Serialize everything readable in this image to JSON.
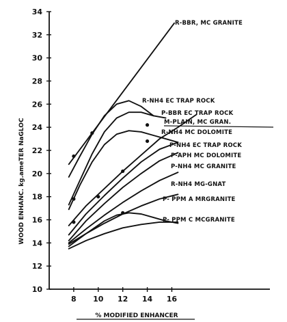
{
  "chart_data": {
    "type": "line",
    "title": "",
    "xlabel": "% MODIFIED ENHANCER",
    "ylabel": "WOOD ENHANC. kg.ameTER NaGLOC",
    "xlim": [
      6,
      24
    ],
    "ylim": [
      10,
      34
    ],
    "x_ticks": [
      "8",
      "10",
      "12",
      "14",
      "16"
    ],
    "x_tick_values": [
      8,
      10,
      12,
      14,
      16
    ],
    "y_ticks": [
      "10",
      "12",
      "14",
      "16",
      "18",
      "20",
      "22",
      "24",
      "26",
      "28",
      "30",
      "32",
      "34"
    ],
    "y_tick_values": [
      10,
      12,
      14,
      16,
      18,
      20,
      22,
      24,
      26,
      28,
      30,
      32,
      34
    ],
    "series": [
      {
        "name": "R-BBR, MC GRANITE",
        "x": [
          7.6,
          16.2
        ],
        "y": [
          20.8,
          33.0
        ]
      },
      {
        "name": "R-NH4 EC TRAP ROCK",
        "x": [
          7.6,
          8.5,
          9.5,
          10.5,
          11.5,
          12.5,
          13.5,
          14.5
        ],
        "y": [
          19.7,
          21.5,
          23.4,
          25.0,
          26.0,
          26.3,
          25.8,
          25.0
        ]
      },
      {
        "name": "P-BBR EC TRAP ROCK",
        "x": [
          7.6,
          8.5,
          9.5,
          10.5,
          11.5,
          12.5,
          13.5,
          14.5,
          15.5
        ],
        "y": [
          17.3,
          19.4,
          21.7,
          23.6,
          24.8,
          25.3,
          25.3,
          25.0,
          24.8
        ]
      },
      {
        "name": "M-PLAIN, MC GRANITE",
        "x": [
          7.6,
          9,
          10.5,
          12,
          13.5,
          15,
          16.5,
          18
        ],
        "y": [
          15.5,
          17.2,
          18.7,
          20.2,
          21.6,
          23.0,
          24.0,
          25.1
        ]
      },
      {
        "name": "R-NH4 MC DOLOMITE",
        "x": [
          7.6,
          8.5,
          9.5,
          10.5,
          11.5,
          12.5,
          13.5,
          14.5,
          15.5,
          16.5
        ],
        "y": [
          16.9,
          19.0,
          21.0,
          22.5,
          23.4,
          23.7,
          23.6,
          23.3,
          23.0,
          22.7
        ]
      },
      {
        "name": "P-NH4 EC TRAP ROCK",
        "x": [
          7.6,
          9,
          10.5,
          12,
          13.5,
          15,
          16.5
        ],
        "y": [
          14.7,
          16.5,
          18.1,
          19.6,
          21.0,
          22.1,
          22.7
        ]
      },
      {
        "name": "P-APH MC DOLOMITE",
        "x": [
          7.6,
          9,
          10.5,
          12,
          13.5,
          15,
          16.5
        ],
        "y": [
          14.2,
          15.9,
          17.4,
          18.8,
          20.0,
          21.1,
          21.8
        ]
      },
      {
        "name": "P-NH4 MC GRANITE",
        "x": [
          7.6,
          9,
          10.5,
          12,
          13.5,
          15,
          16.5
        ],
        "y": [
          14.0,
          15.2,
          16.4,
          17.5,
          18.5,
          19.4,
          20.1
        ]
      },
      {
        "name": "R-NH4 MG-GNAT",
        "x": [
          7.6,
          9,
          10.5,
          12,
          13.5,
          15,
          16.5
        ],
        "y": [
          13.9,
          14.8,
          15.7,
          16.5,
          17.2,
          17.8,
          18.2
        ]
      },
      {
        "name": "P- PPM A MR GRANITE",
        "x": [
          7.6,
          9,
          10.5,
          11.5,
          12.5,
          13.5,
          14.5,
          15.5,
          16.5
        ],
        "y": [
          13.7,
          14.8,
          15.9,
          16.4,
          16.6,
          16.5,
          16.2,
          15.9,
          15.7
        ]
      },
      {
        "name": "P- PPM C MC GRANITE",
        "x": [
          7.6,
          9,
          10.5,
          12,
          13.5,
          15,
          16.5
        ],
        "y": [
          13.5,
          14.2,
          14.8,
          15.3,
          15.6,
          15.8,
          15.8
        ]
      }
    ],
    "markers": [
      {
        "x": 8,
        "y": 21.5
      },
      {
        "x": 9.5,
        "y": 23.5
      },
      {
        "x": 12,
        "y": 20.2
      },
      {
        "x": 14,
        "y": 22.8
      },
      {
        "x": 8,
        "y": 17.8
      },
      {
        "x": 10,
        "y": 18.0
      },
      {
        "x": 8,
        "y": 15.8
      },
      {
        "x": 12,
        "y": 16.6
      },
      {
        "x": 14,
        "y": 24.2
      }
    ],
    "labels": [
      {
        "text": "R-BBR, MC GRANITE",
        "series": 0
      },
      {
        "text": "R-NH4 EC TRAP ROCK",
        "series": 1
      },
      {
        "text": "P-BBR EC TRAP ROCK",
        "series": 2
      },
      {
        "text": "M-PLAIN, MC GRAN.",
        "series": 3
      },
      {
        "text": "R-NH4 MC DOLOMITE",
        "series": 4
      },
      {
        "text": "P-NH4 EC TRAP ROCK",
        "series": 5
      },
      {
        "text": "P-APH MC DOLOMITE",
        "series": 6
      },
      {
        "text": "P-NH4 MC GRANITE",
        "series": 7
      },
      {
        "text": "R-NH4 MG-GNAT",
        "series": 8
      },
      {
        "text": "P- PPM A MRGRANITE",
        "series": 9
      },
      {
        "text": "P- PPM C MCGRANITE",
        "series": 10
      }
    ],
    "grid": false,
    "legend": "none"
  }
}
